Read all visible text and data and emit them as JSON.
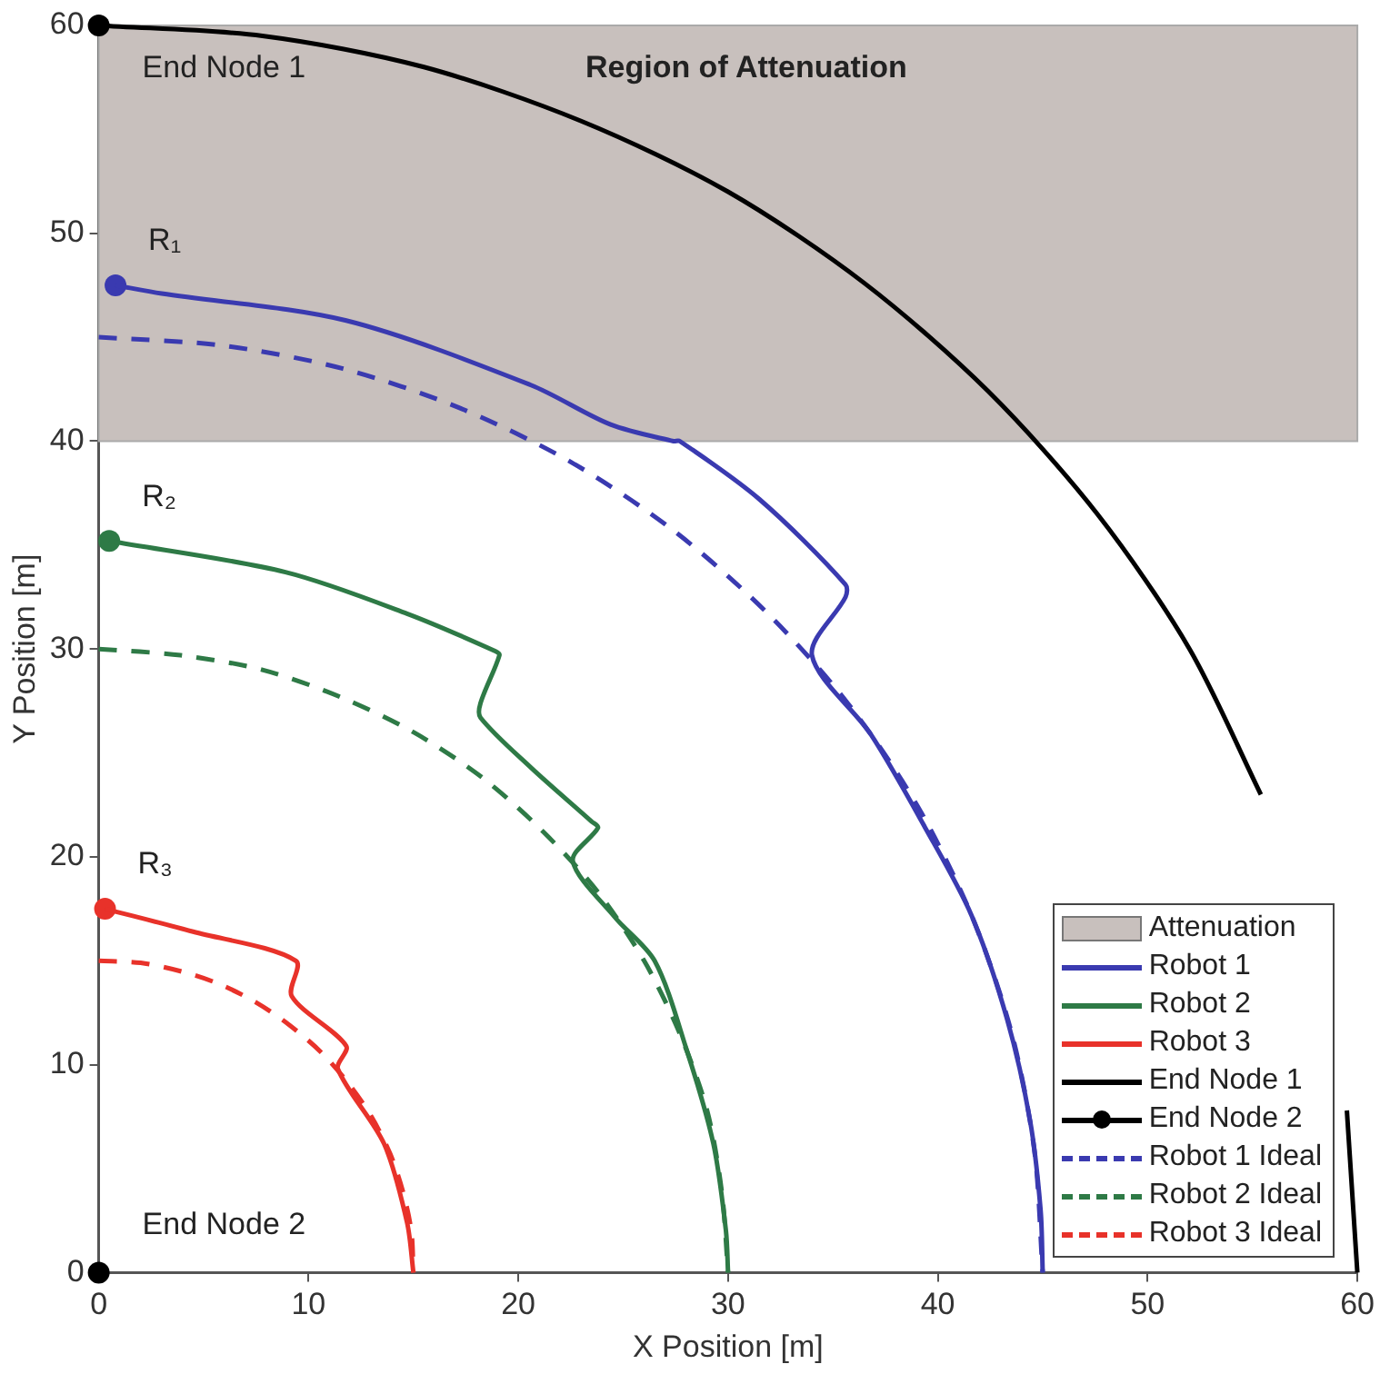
{
  "chart_data": {
    "type": "line",
    "xlabel": "X Position [m]",
    "ylabel": "Y Position [m]",
    "xlim": [
      0,
      60
    ],
    "ylim": [
      0,
      60
    ],
    "xticks": [
      0,
      10,
      20,
      30,
      40,
      50,
      60
    ],
    "yticks": [
      0,
      10,
      20,
      30,
      40,
      50,
      60
    ],
    "grid": false,
    "legend": "bottom right",
    "bands": [
      {
        "axis": "y",
        "from": 40,
        "to": 60,
        "label": "Attenuation",
        "color": "#c8c0bd"
      }
    ],
    "annotations": [
      {
        "text": "End Node 1",
        "x": 0,
        "y": 60
      },
      "Region of Attenuation",
      {
        "text": "R₁",
        "x": 0.8,
        "y": 47.5
      },
      {
        "text": "R₂",
        "x": 0.5,
        "y": 35.2
      },
      {
        "text": "R₃",
        "x": 0.3,
        "y": 17.5
      },
      {
        "text": "End Node 2",
        "x": 0,
        "y": 0
      }
    ],
    "series": [
      {
        "name": "Robot 1",
        "color": "#3a3ab0",
        "line_style": "solid",
        "marker": "none",
        "x": [
          0.8,
          3.0,
          11.8,
          20.6,
          24.4,
          27.4,
          27.7,
          31.5,
          35.6,
          35.6,
          34.0,
          36.8,
          39.4,
          41.6,
          43.3,
          44.4,
          44.9,
          45.0
        ],
        "values": [
          47.5,
          47.1,
          45.8,
          42.7,
          40.8,
          40.0,
          40.0,
          37.2,
          33.1,
          32.5,
          29.7,
          25.9,
          21.4,
          17.2,
          12.2,
          7.3,
          3.0,
          0
        ]
      },
      {
        "name": "Robot 2",
        "color": "#2e7a46",
        "line_style": "solid",
        "marker": "none",
        "x": [
          0.5,
          8.9,
          14.7,
          18.9,
          19.1,
          18.2,
          18.2,
          20.6,
          23.5,
          23.8,
          22.6,
          24.6,
          26.5,
          28.0,
          29.3,
          29.9,
          30.0
        ],
        "values": [
          35.2,
          33.7,
          31.7,
          29.9,
          29.7,
          27.4,
          26.7,
          24.3,
          21.7,
          21.4,
          19.8,
          17.1,
          15.0,
          10.8,
          6.2,
          2.0,
          0
        ]
      },
      {
        "name": "Robot 3",
        "color": "#e8322a",
        "line_style": "solid",
        "marker": "none",
        "x": [
          0.3,
          4.5,
          9.4,
          9.2,
          11.8,
          11.4,
          13.6,
          14.7,
          15.0
        ],
        "values": [
          17.5,
          16.4,
          15.0,
          13.3,
          10.9,
          9.8,
          6.2,
          2.4,
          0
        ]
      },
      {
        "name": "End Node 1",
        "color": "#000000",
        "line_style": "solid",
        "marker": "none",
        "x": [
          0,
          7.8,
          15.5,
          23.0,
          30,
          36.5,
          42.4,
          47.6,
          52.0,
          55.4,
          58.0,
          59.5,
          60
        ],
        "values": [
          60,
          59.5,
          58.0,
          55.4,
          52.0,
          47.6,
          42.4,
          36.5,
          30,
          23.0,
          null,
          7.8,
          0
        ]
      },
      {
        "name": "End Node 2",
        "color": "#000000",
        "line_style": "solid",
        "marker": "circle",
        "x": [
          0
        ],
        "values": [
          0
        ]
      },
      {
        "name": "Robot 1 Ideal",
        "color": "#3a3ab0",
        "line_style": "dashed",
        "marker": "none",
        "x": [
          0,
          5.9,
          11.6,
          17.2,
          22.5,
          27.4,
          31.8,
          35.7,
          39.0,
          41.6,
          43.5,
          44.6,
          45
        ],
        "values": [
          45,
          44.6,
          43.5,
          41.6,
          39.0,
          35.7,
          31.8,
          27.4,
          22.5,
          17.2,
          11.6,
          5.9,
          0
        ]
      },
      {
        "name": "Robot 2 Ideal",
        "color": "#2e7a46",
        "line_style": "dashed",
        "marker": "none",
        "x": [
          0,
          3.9,
          7.8,
          11.5,
          15,
          18.3,
          21.2,
          23.8,
          26.0,
          27.7,
          29.0,
          29.7,
          30
        ],
        "values": [
          30,
          29.7,
          29.0,
          27.7,
          26.0,
          23.8,
          21.2,
          18.3,
          15,
          11.5,
          7.8,
          3.9,
          0
        ]
      },
      {
        "name": "Robot 3 Ideal",
        "color": "#e8322a",
        "line_style": "dashed",
        "marker": "none",
        "x": [
          0,
          2.0,
          3.9,
          5.7,
          7.5,
          9.1,
          10.6,
          11.9,
          13.0,
          13.9,
          14.5,
          14.9,
          15
        ],
        "values": [
          15,
          14.9,
          14.5,
          13.9,
          13.0,
          11.9,
          10.6,
          9.1,
          7.5,
          5.7,
          3.9,
          2.0,
          0
        ]
      },
      {
        "type": "scatter",
        "marker": "circle",
        "colors": [
          "#000000",
          "#3a3ab0",
          "#2e7a46",
          "#e8322a"
        ],
        "x": [
          0,
          0.8,
          0.5,
          0.3
        ],
        "values": [
          60,
          47.5,
          35.2,
          17.5
        ]
      }
    ]
  }
}
